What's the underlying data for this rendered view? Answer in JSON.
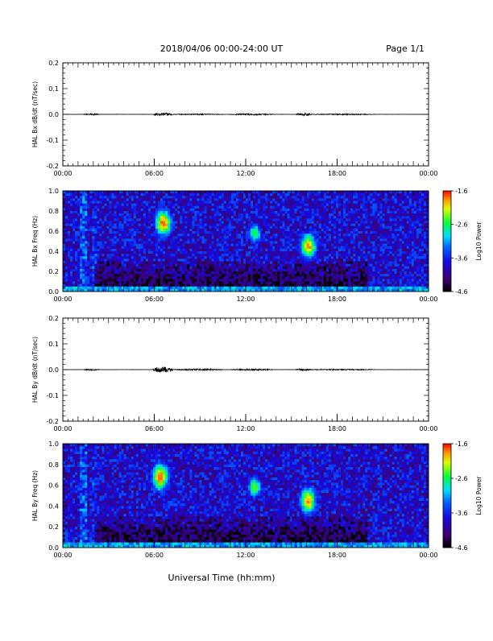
{
  "header": {
    "title": "2018/04/06  00:00-24:00 UT",
    "page": "Page 1/1"
  },
  "footer": {
    "xlabel": "Universal Time (hh:mm)"
  },
  "colors": {
    "trace": "#000000",
    "spectrogram_scale": [
      "#000000",
      "#3a006b",
      "#0000ff",
      "#00c8ff",
      "#00ff00",
      "#ffff00",
      "#ff0000"
    ]
  },
  "chart_data": [
    {
      "type": "line",
      "ylabel": "HAL Bx dB/dt (nT/sec)",
      "xlim": [
        "00:00",
        "24:00"
      ],
      "ylim": [
        -0.2,
        0.2
      ],
      "xticks": [
        "00:00",
        "06:00",
        "12:00",
        "18:00",
        "00:00"
      ],
      "yticks": [
        "0.2",
        "0.1",
        "0.0",
        "-0.1",
        "-0.2"
      ],
      "series": [
        {
          "bursts": [
            {
              "start_hr": 1.4,
              "end_hr": 2.4,
              "amplitude": 0.003
            },
            {
              "start_hr": 6.0,
              "end_hr": 7.2,
              "amplitude": 0.006
            },
            {
              "start_hr": 7.2,
              "end_hr": 10.5,
              "amplitude": 0.002
            },
            {
              "start_hr": 11.0,
              "end_hr": 13.8,
              "amplitude": 0.003
            },
            {
              "start_hr": 15.3,
              "end_hr": 16.3,
              "amplitude": 0.005
            },
            {
              "start_hr": 16.3,
              "end_hr": 20.5,
              "amplitude": 0.002
            }
          ]
        }
      ]
    },
    {
      "type": "heatmap",
      "ylabel": "HAL Bx Freq (Hz)",
      "xlim": [
        "00:00",
        "24:00"
      ],
      "ylim": [
        0.0,
        1.0
      ],
      "xticks": [
        "00:00",
        "06:00",
        "12:00",
        "18:00",
        "00:00"
      ],
      "yticks": [
        "1.0",
        "0.8",
        "0.6",
        "0.4",
        "0.2",
        "0.0"
      ],
      "colorbar": {
        "label": "Log10 Power",
        "ticks": [
          "-1.6",
          "-2.6",
          "-3.6",
          "-4.6"
        ],
        "range": [
          -4.6,
          -1.6
        ]
      },
      "features": [
        {
          "time_hr": 6.6,
          "freq_hz": 0.68,
          "peak_log_power": -1.7
        },
        {
          "time_hr": 12.6,
          "freq_hz": 0.58,
          "peak_log_power": -2.5
        },
        {
          "time_hr": 16.1,
          "freq_hz": 0.45,
          "peak_log_power": -1.8
        }
      ]
    },
    {
      "type": "line",
      "ylabel": "HAL By dB/dt (nT/sec)",
      "xlim": [
        "00:00",
        "24:00"
      ],
      "ylim": [
        -0.2,
        0.2
      ],
      "xticks": [
        "00:00",
        "06:00",
        "12:00",
        "18:00",
        "00:00"
      ],
      "yticks": [
        "0.2",
        "0.1",
        "0.0",
        "-0.1",
        "-0.2"
      ],
      "series": [
        {
          "bursts": [
            {
              "start_hr": 1.4,
              "end_hr": 2.4,
              "amplitude": 0.003
            },
            {
              "start_hr": 5.9,
              "end_hr": 7.2,
              "amplitude": 0.012
            },
            {
              "start_hr": 7.2,
              "end_hr": 10.5,
              "amplitude": 0.003
            },
            {
              "start_hr": 11.0,
              "end_hr": 13.8,
              "amplitude": 0.003
            },
            {
              "start_hr": 15.3,
              "end_hr": 16.3,
              "amplitude": 0.004
            },
            {
              "start_hr": 16.3,
              "end_hr": 20.5,
              "amplitude": 0.002
            }
          ]
        }
      ]
    },
    {
      "type": "heatmap",
      "ylabel": "HAL By Freq (Hz)",
      "xlim": [
        "00:00",
        "24:00"
      ],
      "ylim": [
        0.0,
        1.0
      ],
      "xticks": [
        "00:00",
        "06:00",
        "12:00",
        "18:00",
        "00:00"
      ],
      "yticks": [
        "1.0",
        "0.8",
        "0.6",
        "0.4",
        "0.2",
        "0.0"
      ],
      "colorbar": {
        "label": "Log10 Power",
        "ticks": [
          "-1.6",
          "-2.6",
          "-3.6",
          "-4.6"
        ],
        "range": [
          -4.6,
          -1.6
        ]
      },
      "features": [
        {
          "time_hr": 6.4,
          "freq_hz": 0.68,
          "peak_log_power": -1.7
        },
        {
          "time_hr": 12.6,
          "freq_hz": 0.58,
          "peak_log_power": -2.4
        },
        {
          "time_hr": 16.1,
          "freq_hz": 0.45,
          "peak_log_power": -1.8
        }
      ]
    }
  ]
}
